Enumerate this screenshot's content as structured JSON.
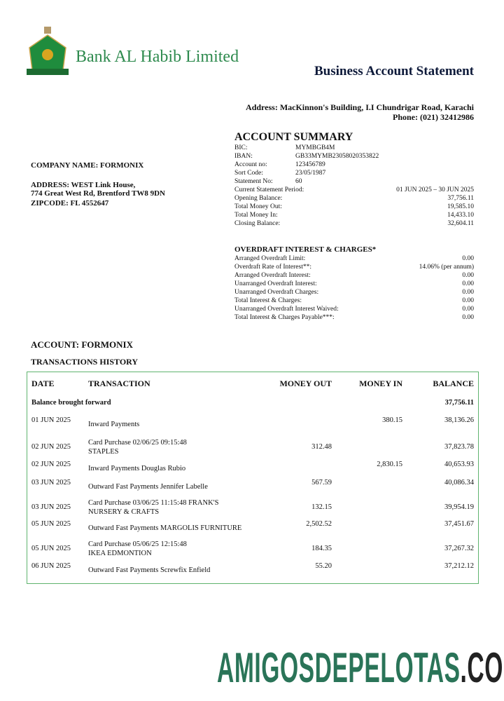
{
  "bank": {
    "name": "Bank AL Habib Limited",
    "logo_text": "Bank AL Habib",
    "brand_color": "#2e8a4e"
  },
  "header": {
    "title": "Business Account Statement",
    "address": "Address: MacKinnon's Building, I.I Chundrigar Road, Karachi",
    "phone": "Phone: (021) 32412986"
  },
  "company": {
    "name": "COMPANY NAME: FORMONIX",
    "address_line1": "ADDRESS: WEST Link House,",
    "address_line2": "774 Great West Rd, Brentford TW8 9DN",
    "zipcode": "ZIPCODE: FL 4552647"
  },
  "summary": {
    "title": "ACCOUNT SUMMARY",
    "details": [
      {
        "label": "BIC:",
        "value": "MYMBGB4M"
      },
      {
        "label": "IBAN:",
        "value": "GB33MYMB23058020353822"
      },
      {
        "label": "Account no:",
        "value": "123456789"
      },
      {
        "label": "Sort Code:",
        "value": "23/05/1987"
      },
      {
        "label": "Statement No:",
        "value": "60"
      }
    ],
    "figures": [
      {
        "label": "Current Statement Period:",
        "value": "01 JUN 2025 – 30 JUN 2025"
      },
      {
        "label": "Opening Balance:",
        "value": "37,756.11"
      },
      {
        "label": "Total Money Out:",
        "value": "19,585.10"
      },
      {
        "label": "Total Money In:",
        "value": "14,433.10"
      },
      {
        "label": "Closing Balance:",
        "value": "32,604.11"
      }
    ]
  },
  "overdraft": {
    "title": "OVERDRAFT INTEREST & CHARGES*",
    "items": [
      {
        "label": "Arranged Overdraft Limit:",
        "value": "0.00"
      },
      {
        "label": "Overdraft Rate of Interest**:",
        "value": "14.06% (per annum)"
      },
      {
        "label": "Arranged Overdraft Interest:",
        "value": "0.00"
      },
      {
        "label": "Unarranged Overdraft Interest:",
        "value": "0.00"
      },
      {
        "label": "Unarranged Overdraft Charges:",
        "value": "0.00"
      },
      {
        "label": "Total Interest & Charges:",
        "value": "0.00"
      },
      {
        "label": "Unarranged Overdraft Interest Waived:",
        "value": "0.00"
      },
      {
        "label": "Total Interest & Charges Payable***:",
        "value": "0.00"
      }
    ]
  },
  "account_heading": "ACCOUNT: FORMONIX",
  "transactions_heading": "TRANSACTIONS HISTORY",
  "table": {
    "columns": [
      "DATE",
      "TRANSACTION",
      "MONEY OUT",
      "MONEY IN",
      "BALANCE"
    ],
    "brought_forward": {
      "label": "Balance brought forward",
      "balance": "37,756.11"
    },
    "rows": [
      {
        "date": "01 JUN 2025",
        "desc1": "Inward Payments",
        "desc2": "",
        "out": "",
        "in": "380.15",
        "balance": "38,136.26"
      },
      {
        "date": "02 JUN 2025",
        "desc1": "Card Purchase 02/06/25 09:15:48",
        "desc2": "STAPLES",
        "out": "312.48",
        "in": "",
        "balance": "37,823.78"
      },
      {
        "date": "02 JUN 2025",
        "desc1": "Inward Payments Douglas Rubio",
        "desc2": "",
        "out": "",
        "in": "2,830.15",
        "balance": "40,653.93"
      },
      {
        "date": "03 JUN 2025",
        "desc1": "Outward Fast Payments Jennifer Labelle",
        "desc2": "",
        "out": "567.59",
        "in": "",
        "balance": "40,086.34"
      },
      {
        "date": "03 JUN 2025",
        "desc1": "Card Purchase 03/06/25 11:15:48 FRANK'S",
        "desc2": "NURSERY & CRAFTS",
        "out": "132.15",
        "in": "",
        "balance": "39,954.19"
      },
      {
        "date": "05 JUN 2025",
        "desc1": "Outward Fast Payments MARGOLIS FURNITURE",
        "desc2": "",
        "out": "2,502.52",
        "in": "",
        "balance": "37,451.67"
      },
      {
        "date": "05 JUN 2025",
        "desc1": "Card Purchase 05/06/25 12:15:48",
        "desc2": "IKEA EDMONTION",
        "out": "184.35",
        "in": "",
        "balance": "37,267.32"
      },
      {
        "date": "06 JUN 2025",
        "desc1": "Outward Fast Payments Screwfix Enfield",
        "desc2": "",
        "out": "55.20",
        "in": "",
        "balance": "37,212.12"
      }
    ]
  },
  "watermark": {
    "main": "AMIGOSDEPELOTAS",
    "suffix": ".COM",
    "main_color": "#2a7458",
    "suffix_color": "#222222"
  }
}
